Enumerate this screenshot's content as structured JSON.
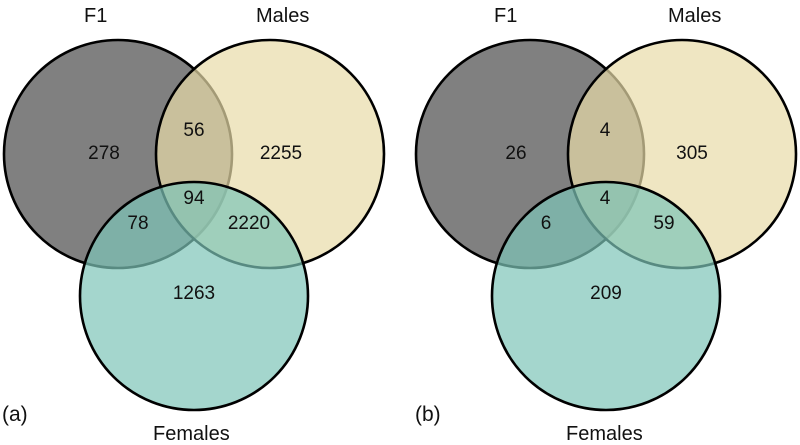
{
  "colors": {
    "f1": "#4a4a4a",
    "males": "#e8dca8",
    "females": "#7ec4b8"
  },
  "panels": [
    {
      "caption": "(a)",
      "set_labels": {
        "f1": "F1",
        "males": "Males",
        "females": "Females"
      },
      "counts": {
        "f1_only": "278",
        "f1_males": "56",
        "males_only": "2255",
        "f1_females": "78",
        "all": "94",
        "males_females": "2220",
        "females_only": "1263"
      }
    },
    {
      "caption": "(b)",
      "set_labels": {
        "f1": "F1",
        "males": "Males",
        "females": "Females"
      },
      "counts": {
        "f1_only": "26",
        "f1_males": "4",
        "males_only": "305",
        "f1_females": "6",
        "all": "4",
        "males_females": "59",
        "females_only": "209"
      }
    }
  ]
}
